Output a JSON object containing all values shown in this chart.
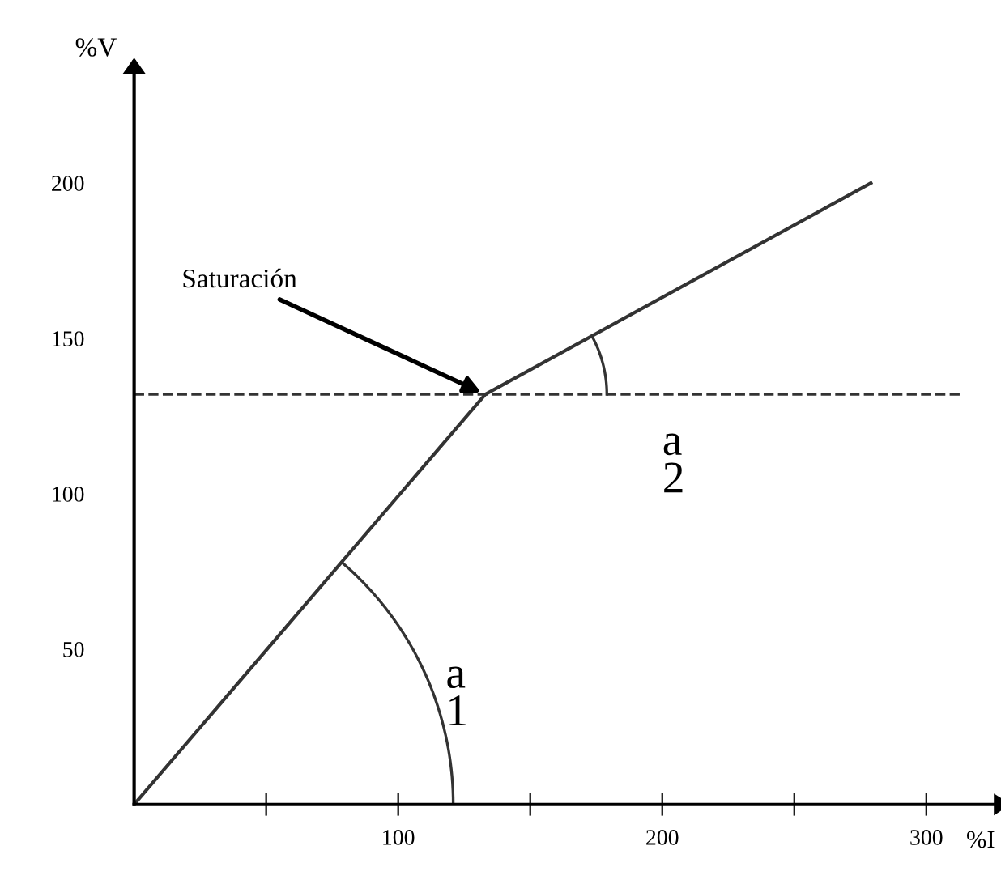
{
  "chart_data": {
    "type": "line",
    "xlabel": "%I",
    "ylabel": "%V",
    "x": [
      0,
      133,
      279
    ],
    "series": [
      {
        "color": "#333333",
        "values": [
          0,
          132,
          200
        ]
      }
    ],
    "xlim": [
      0,
      326
    ],
    "ylim": [
      0,
      239
    ],
    "xticks": [
      {
        "value": 50,
        "label": null
      },
      100,
      {
        "value": 150,
        "label": null
      },
      200,
      {
        "value": 250,
        "label": null
      },
      300
    ],
    "yticks": [
      50,
      100,
      150,
      200
    ],
    "ref_lines": [
      {
        "axis": "y",
        "value": 132,
        "line_style": "dashed",
        "color": "#333333"
      }
    ],
    "annotations": [
      {
        "text": "Saturación",
        "x": 133,
        "y": 132
      },
      "a\n1",
      "a\n2"
    ],
    "grid": false,
    "legend": false,
    "marker": "none",
    "line_style": "solid"
  }
}
